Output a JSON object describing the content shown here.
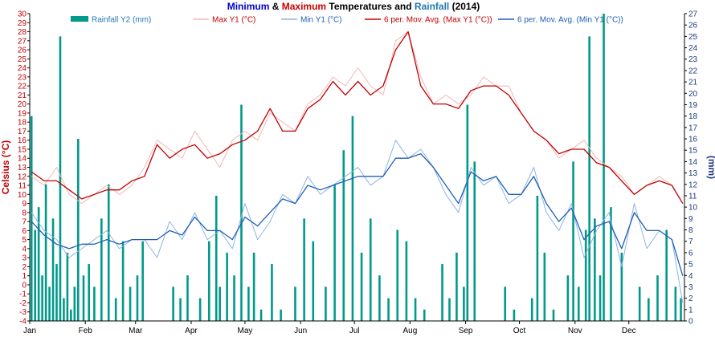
{
  "chart_data": {
    "type": "line",
    "title": {
      "parts": [
        {
          "text": "Minimum",
          "color": "#0000cc"
        },
        {
          "text": " & ",
          "color": "#000000"
        },
        {
          "text": "Maximum",
          "color": "#cc0000"
        },
        {
          "text": " Temperatures and ",
          "color": "#000000"
        },
        {
          "text": "Rainfall",
          "color": "#1e78b4"
        },
        {
          "text": " (2014)",
          "color": "#000000"
        }
      ]
    },
    "ylabel_left": "Celsius (°C)",
    "ylabel_right": "(mm)",
    "ylim_left": [
      -4,
      30
    ],
    "ylim_right": [
      0,
      27
    ],
    "y_ticks_left": [
      -4,
      -3,
      -2,
      -1,
      0,
      1,
      2,
      3,
      4,
      5,
      6,
      7,
      8,
      9,
      10,
      11,
      12,
      13,
      14,
      15,
      16,
      17,
      18,
      19,
      20,
      21,
      22,
      23,
      24,
      25,
      26,
      27,
      28,
      29,
      30
    ],
    "y_ticks_right": [
      0,
      1,
      2,
      3,
      4,
      5,
      6,
      7,
      8,
      9,
      10,
      11,
      12,
      13,
      14,
      15,
      16,
      17,
      18,
      19,
      20,
      21,
      22,
      23,
      24,
      25,
      26,
      27
    ],
    "x_tick_labels": [
      "Jan",
      "Feb",
      "Mar",
      "Apr",
      "May",
      "Jun",
      "Jul",
      "Aug",
      "Sep",
      "Oct",
      "Nov",
      "Dec"
    ],
    "x_tick_days": [
      0,
      31,
      59,
      90,
      120,
      151,
      181,
      212,
      243,
      273,
      304,
      334
    ],
    "days_in_year": 365,
    "grid": false,
    "legend": {
      "placement": "top",
      "entries": [
        {
          "name": "Rainfall Y2 (mm)",
          "kind": "bar",
          "color": "#00998a"
        },
        {
          "name": "Max Y1 (°C)",
          "kind": "line",
          "color": "#f5b5b5"
        },
        {
          "name": "Min Y1 (°C)",
          "kind": "line",
          "color": "#8cb4e6"
        },
        {
          "name": "6 per. Mov. Avg. (Max Y1 (°C))",
          "kind": "line",
          "color": "#c00000"
        },
        {
          "name": "6 per. Mov. Avg. (Min Y1 (°C))",
          "kind": "line",
          "color": "#1f5fb5"
        }
      ]
    },
    "series": [
      {
        "name": "Max Y1 (°C)",
        "axis": "left",
        "color": "#f5b5b5",
        "note_x": "approximate day-of-year sample points",
        "x": [
          1,
          8,
          15,
          22,
          29,
          36,
          43,
          50,
          57,
          64,
          71,
          78,
          85,
          92,
          99,
          106,
          113,
          120,
          127,
          134,
          141,
          148,
          155,
          162,
          169,
          176,
          183,
          190,
          197,
          204,
          211,
          218,
          225,
          232,
          239,
          246,
          253,
          260,
          267,
          274,
          281,
          288,
          295,
          302,
          309,
          316,
          323,
          330,
          337,
          344,
          351,
          358,
          364
        ],
        "y": [
          12,
          11,
          13,
          10,
          9,
          10,
          11,
          10,
          11,
          13,
          16,
          15,
          14,
          17,
          15,
          13,
          16,
          17,
          16,
          19,
          18,
          17,
          20,
          21,
          23,
          22,
          24,
          22,
          21,
          27,
          28,
          23,
          20,
          21,
          20,
          21,
          23,
          22,
          22,
          19,
          17,
          16,
          14,
          15,
          16,
          14,
          13,
          12,
          10,
          11,
          12,
          11,
          9
        ]
      },
      {
        "name": "Min Y1 (°C)",
        "axis": "left",
        "color": "#8cb4e6",
        "x": [
          1,
          8,
          15,
          22,
          29,
          36,
          43,
          50,
          57,
          64,
          71,
          78,
          85,
          92,
          99,
          106,
          113,
          120,
          127,
          134,
          141,
          148,
          155,
          162,
          169,
          176,
          183,
          190,
          197,
          204,
          211,
          218,
          225,
          232,
          239,
          246,
          253,
          260,
          267,
          274,
          281,
          288,
          295,
          302,
          309,
          316,
          323,
          330,
          337,
          344,
          351,
          358,
          364
        ],
        "y": [
          8,
          6,
          5,
          3,
          4,
          5,
          6,
          4,
          5,
          5,
          3,
          7,
          5,
          8,
          5,
          6,
          4,
          9,
          5,
          7,
          10,
          9,
          12,
          10,
          11,
          12,
          13,
          11,
          12,
          16,
          14,
          15,
          13,
          10,
          8,
          13,
          11,
          12,
          9,
          10,
          13,
          8,
          6,
          9,
          3,
          6,
          8,
          2,
          9,
          4,
          6,
          5,
          -2
        ]
      },
      {
        "name": "6 per. Mov. Avg. (Max Y1 (°C))",
        "axis": "left",
        "color": "#c00000",
        "x": [
          1,
          8,
          15,
          22,
          29,
          36,
          43,
          50,
          57,
          64,
          71,
          78,
          85,
          92,
          99,
          106,
          113,
          120,
          127,
          134,
          141,
          148,
          155,
          162,
          169,
          176,
          183,
          190,
          197,
          204,
          211,
          218,
          225,
          232,
          239,
          246,
          253,
          260,
          267,
          274,
          281,
          288,
          295,
          302,
          309,
          316,
          323,
          330,
          337,
          344,
          351,
          358,
          364
        ],
        "y": [
          12.5,
          11.5,
          11.5,
          10.5,
          9.5,
          10,
          10.5,
          10.5,
          11.5,
          12,
          15.5,
          14,
          15,
          15.5,
          14,
          14.5,
          15.5,
          16,
          17,
          19.5,
          17,
          17,
          19.5,
          20.5,
          22.5,
          21,
          22.5,
          21,
          22,
          26,
          28,
          22,
          20,
          20,
          19.5,
          21.5,
          22,
          22,
          21,
          19,
          17,
          16,
          14.5,
          15,
          15,
          13.5,
          13,
          11.5,
          10,
          11,
          11.5,
          11,
          9
        ]
      },
      {
        "name": "6 per. Mov. Avg. (Min Y1 (°C))",
        "axis": "left",
        "color": "#1f5fb5",
        "x": [
          1,
          8,
          15,
          22,
          29,
          36,
          43,
          50,
          57,
          64,
          71,
          78,
          85,
          92,
          99,
          106,
          113,
          120,
          127,
          134,
          141,
          148,
          155,
          162,
          169,
          176,
          183,
          190,
          197,
          204,
          211,
          218,
          225,
          232,
          239,
          246,
          253,
          260,
          267,
          274,
          281,
          288,
          295,
          302,
          309,
          316,
          323,
          330,
          337,
          344,
          351,
          358,
          364
        ],
        "y": [
          7,
          5.5,
          4.5,
          4,
          4.5,
          4.5,
          5,
          4.5,
          5,
          5,
          5,
          6,
          5.5,
          7.5,
          6,
          6,
          5,
          7.5,
          6.5,
          8,
          9.5,
          9,
          11,
          10.5,
          11,
          11.5,
          12,
          12,
          12,
          14,
          14,
          14.5,
          13,
          11,
          9,
          12.5,
          11.5,
          12,
          10,
          10,
          12,
          9,
          7,
          8.5,
          5,
          6.5,
          7,
          4,
          8,
          6,
          6,
          5,
          1
        ]
      },
      {
        "name": "Rainfall Y2 (mm)",
        "axis": "right",
        "color": "#00998a",
        "kind": "bar",
        "x": [
          1,
          3,
          5,
          7,
          9,
          11,
          13,
          15,
          17,
          19,
          21,
          23,
          25,
          27,
          30,
          33,
          36,
          40,
          44,
          48,
          52,
          56,
          60,
          63,
          80,
          84,
          88,
          95,
          100,
          104,
          106,
          110,
          114,
          118,
          122,
          125,
          129,
          135,
          140,
          148,
          153,
          158,
          165,
          170,
          175,
          180,
          185,
          190,
          195,
          200,
          205,
          210,
          215,
          220,
          230,
          234,
          238,
          242,
          244,
          248,
          265,
          270,
          280,
          283,
          287,
          292,
          300,
          303,
          306,
          310,
          312,
          315,
          318,
          320,
          324,
          330,
          340,
          345,
          350,
          355,
          360,
          363
        ],
        "values": [
          18,
          8,
          10,
          4,
          12,
          3,
          9,
          5,
          25,
          2,
          6,
          1,
          3,
          16,
          4,
          5,
          3,
          9,
          12,
          2,
          7,
          3,
          4,
          7,
          3,
          2,
          4,
          2,
          7,
          11,
          3,
          6,
          4,
          19,
          3,
          6,
          1,
          5,
          1,
          3,
          9,
          7,
          3,
          12,
          15,
          18,
          6,
          9,
          4,
          2,
          8,
          7,
          2,
          1,
          5,
          2,
          6,
          3,
          19,
          14,
          3,
          1,
          2,
          11,
          6,
          1,
          4,
          14,
          3,
          8,
          25,
          9,
          4,
          27,
          10,
          6,
          3,
          2,
          4,
          8,
          3,
          2
        ]
      }
    ]
  }
}
